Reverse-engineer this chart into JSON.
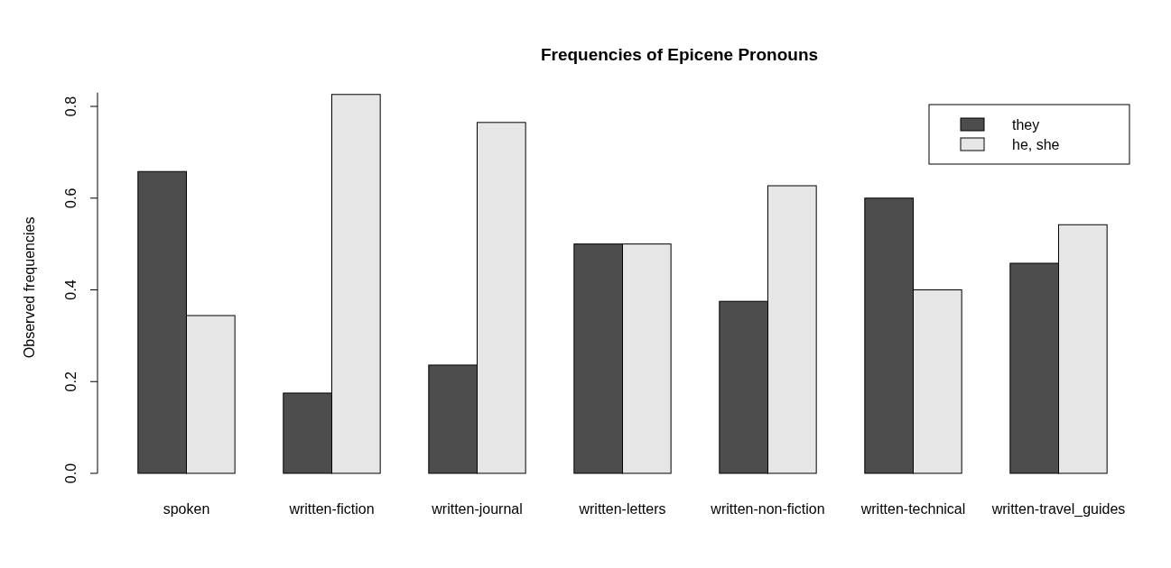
{
  "chart_data": {
    "type": "bar",
    "title": "Frequencies of Epicene Pronouns",
    "ylabel": "Observed frequencies",
    "categories": [
      "spoken",
      "written-fiction",
      "written-journal",
      "written-letters",
      "written-non-fiction",
      "written-technical",
      "written-travel_guides"
    ],
    "series": [
      {
        "name": "they",
        "color": "#4d4d4d",
        "values": [
          0.658,
          0.175,
          0.236,
          0.5,
          0.375,
          0.6,
          0.458
        ]
      },
      {
        "name": "he, she",
        "color": "#e6e6e6",
        "values": [
          0.344,
          0.826,
          0.765,
          0.5,
          0.627,
          0.4,
          0.542
        ]
      }
    ],
    "ylim": [
      0,
      0.83
    ],
    "yticks": [
      {
        "value": 0,
        "label": "0.0"
      },
      0.2,
      0.4,
      0.6,
      0.8
    ],
    "grid": false,
    "legend": "top right"
  }
}
